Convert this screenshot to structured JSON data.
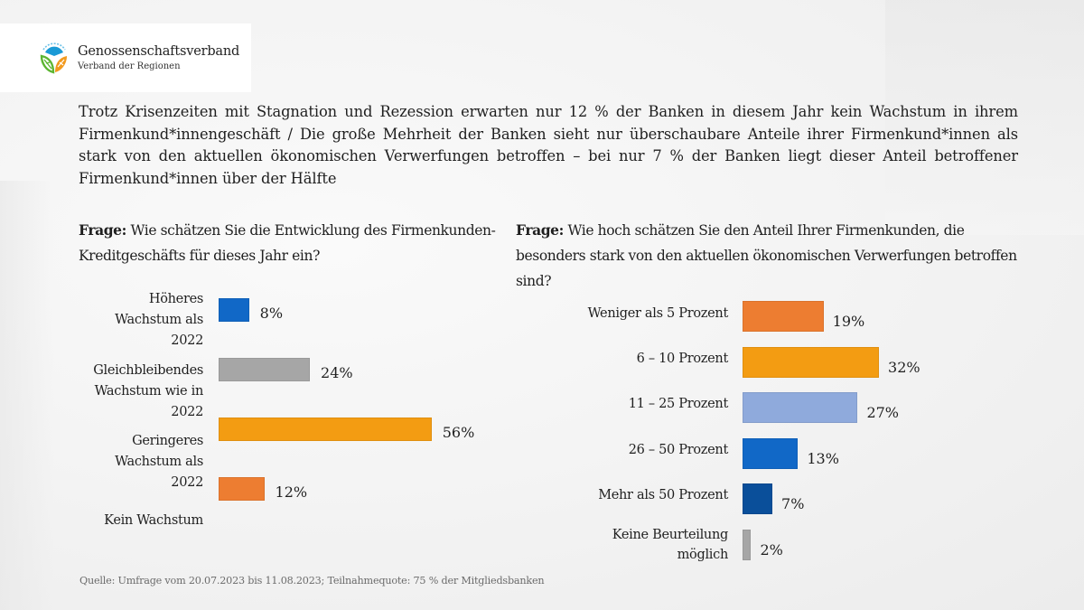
{
  "logo": {
    "title": "Genossenschaftsverband",
    "subtitle": "Verband der Regionen",
    "icon": "cooperative-logo-icon"
  },
  "headline": "Trotz Krisenzeiten mit Stagnation und Rezession erwarten nur 12 % der Banken in diesem Jahr kein Wachstum in ihrem Firmenkund*innengeschäft / Die große Mehrheit der Banken sieht nur überschaubare Anteile ihrer Firmenkund*innen als stark von den aktuellen ökonomischen Verwerfungen betroffen – bei nur 7 % der Banken liegt dieser Anteil betroffener Firmenkund*innen über der Hälfte",
  "footer": "Quelle: Umfrage vom 20.07.2023 bis 11.08.2023; Teilnahmequote: 75 % der Mitgliedsbanken",
  "chart_data": [
    {
      "type": "bar",
      "orientation": "horizontal",
      "question_prefix": "Frage:",
      "title": "Wie schätzen Sie die Entwicklung des Firmenkunden-Kreditgeschäfts für dieses Jahr ein?",
      "categories": [
        "Höheres Wachstum als 2022",
        "Gleichbleibendes Wachstum wie in 2022",
        "Geringeres Wachstum als 2022",
        "Kein Wachstum"
      ],
      "category_lines": [
        [
          "Höheres",
          "Wachstum als",
          "2022"
        ],
        [
          "Gleichbleibendes",
          "Wachstum wie in",
          "2022"
        ],
        [
          "Geringeres",
          "Wachstum als",
          "2022"
        ],
        [
          "Kein Wachstum"
        ]
      ],
      "values": [
        8,
        24,
        56,
        12
      ],
      "value_labels": [
        "8%",
        "24%",
        "56%",
        "12%"
      ],
      "colors": [
        "#1168c7",
        "#a6a6a6",
        "#f39c12",
        "#ed7d31"
      ],
      "unit": "%",
      "xlabel": "",
      "ylabel": "",
      "grid": false,
      "legend": "none"
    },
    {
      "type": "bar",
      "orientation": "horizontal",
      "question_prefix": "Frage:",
      "title": "Wie hoch schätzen Sie den Anteil Ihrer Firmenkunden, die besonders stark von den aktuellen ökonomischen Verwerfungen betroffen sind?",
      "categories": [
        "Weniger als 5 Prozent",
        "6 – 10 Prozent",
        "11 – 25 Prozent",
        "26 – 50 Prozent",
        "Mehr als 50 Prozent",
        "Keine Beurteilung möglich"
      ],
      "category_lines": [
        [
          "Weniger als 5 Prozent"
        ],
        [
          "6 – 10 Prozent"
        ],
        [
          "11 – 25 Prozent"
        ],
        [
          "26 – 50 Prozent"
        ],
        [
          "Mehr als 50 Prozent"
        ],
        [
          "Keine Beurteilung",
          "möglich"
        ]
      ],
      "values": [
        19,
        32,
        27,
        13,
        7,
        2
      ],
      "value_labels": [
        "19%",
        "32%",
        "27%",
        "13%",
        "7%",
        "2%"
      ],
      "colors": [
        "#ed7d31",
        "#f39c12",
        "#8faadc",
        "#1168c7",
        "#0a4f9a",
        "#a6a6a6"
      ],
      "unit": "%",
      "xlabel": "",
      "ylabel": "",
      "grid": false,
      "legend": "none"
    }
  ]
}
